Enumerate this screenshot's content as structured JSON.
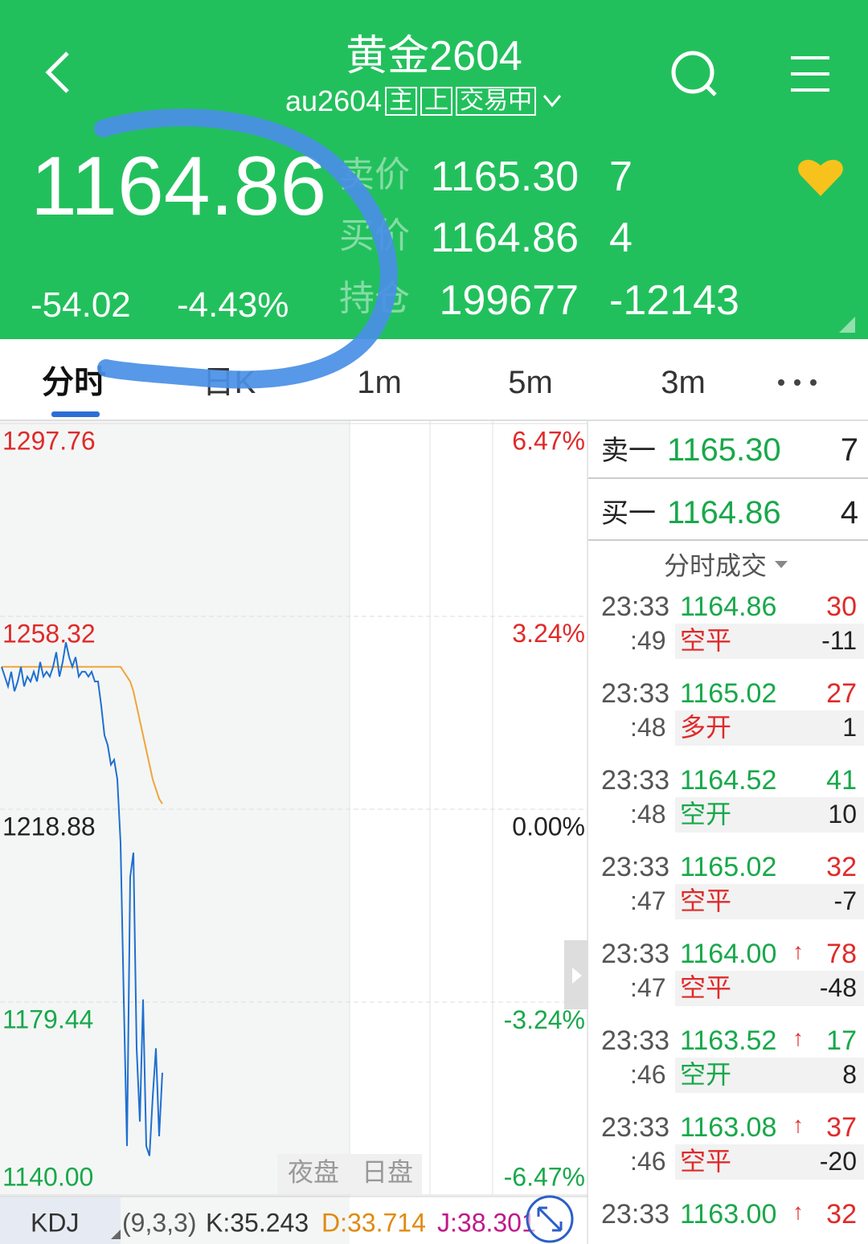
{
  "header": {
    "title": "黄金2604",
    "code": "au2604",
    "tags": [
      "主",
      "上",
      "交易中"
    ]
  },
  "quote": {
    "price": "1164.86",
    "change": "-54.02",
    "pct": "-4.43%",
    "rows": [
      {
        "label": "卖价",
        "price": "1165.30",
        "qty": "7"
      },
      {
        "label": "买价",
        "price": "1164.86",
        "qty": "4"
      },
      {
        "label": "持仓",
        "price": "199677",
        "qty": "-12143"
      }
    ]
  },
  "tabs": [
    "分时",
    "日K",
    "1m",
    "5m",
    "3m"
  ],
  "chart": {
    "type": "line",
    "yticks": [
      1297.76,
      1258.32,
      1218.88,
      1179.44,
      {
        "value": 1140,
        "label": "1140.00"
      }
    ],
    "y2ticks": [
      {
        "value": 6.47,
        "label": "6.47%"
      },
      {
        "value": 3.24,
        "label": "3.24%"
      },
      {
        "value": 0,
        "label": "0.00%"
      },
      {
        "value": -3.24,
        "label": "-3.24%"
      },
      {
        "value": -6.47,
        "label": "-6.47%"
      }
    ],
    "series": [
      {
        "name": "price",
        "color": "#1f6fd1",
        "values": [
          1248,
          1246,
          1244,
          1247,
          1243,
          1245,
          1248,
          1244,
          1246,
          1245,
          1247,
          1245,
          1249,
          1246,
          1247,
          1246,
          1248,
          1251,
          1246,
          1249,
          1253,
          1250,
          1248,
          1250,
          1246,
          1247,
          1247,
          1246,
          1247,
          1245,
          1245,
          1240,
          1234,
          1232,
          1228,
          1229,
          1225,
          1212,
          1180,
          1150,
          1205,
          1210,
          1170,
          1155,
          1180,
          1150,
          1148,
          1160,
          1170,
          1152,
          1165
        ]
      },
      {
        "name": "average",
        "color": "#f0a43a",
        "values": [
          1248,
          1248,
          1248,
          1248,
          1248,
          1248,
          1248,
          1248,
          1248,
          1248,
          1248,
          1248,
          1248,
          1248,
          1248,
          1248,
          1248,
          1248,
          1248,
          1248,
          1248,
          1248,
          1248,
          1248,
          1248,
          1248,
          1248,
          1248,
          1248,
          1248,
          1248,
          1248,
          1248,
          1248,
          1248,
          1248,
          1248,
          1248,
          1247,
          1246,
          1245,
          1243,
          1240,
          1237,
          1234,
          1231,
          1228,
          1225,
          1223,
          1221,
          1220
        ]
      }
    ],
    "sessions": [
      "夜盘",
      "日盘"
    ],
    "indicator": {
      "name": "KDJ",
      "params": "(9,3,3)",
      "k": "K:35.243",
      "d": "D:33.714",
      "j": "J:38.301"
    }
  },
  "book": [
    {
      "label": "卖一",
      "price": "1165.30",
      "qty": "7"
    },
    {
      "label": "买一",
      "price": "1164.86",
      "qty": "4"
    }
  ],
  "trades_title": "分时成交",
  "trades": [
    {
      "time": "23:33",
      "sec": ":49",
      "price": "1164.86",
      "vol": "30",
      "vol_color": "#e02a2a",
      "kind": "空平",
      "kind_color": "#e02a2a",
      "chg": "-11"
    },
    {
      "time": "23:33",
      "sec": ":48",
      "price": "1165.02",
      "vol": "27",
      "vol_color": "#e02a2a",
      "kind": "多开",
      "kind_color": "#e02a2a",
      "chg": "1"
    },
    {
      "time": "23:33",
      "sec": ":48",
      "price": "1164.52",
      "vol": "41",
      "vol_color": "#18a84a",
      "kind": "空开",
      "kind_color": "#18a84a",
      "chg": "10"
    },
    {
      "time": "23:33",
      "sec": ":47",
      "price": "1165.02",
      "vol": "32",
      "vol_color": "#e02a2a",
      "kind": "空平",
      "kind_color": "#e02a2a",
      "chg": "-7"
    },
    {
      "time": "23:33",
      "sec": ":47",
      "price": "1164.00",
      "arrow": "↑",
      "vol": "78",
      "vol_color": "#e02a2a",
      "kind": "空平",
      "kind_color": "#e02a2a",
      "chg": "-48"
    },
    {
      "time": "23:33",
      "sec": ":46",
      "price": "1163.52",
      "arrow": "↑",
      "vol": "17",
      "vol_color": "#18a84a",
      "kind": "空开",
      "kind_color": "#18a84a",
      "chg": "8"
    },
    {
      "time": "23:33",
      "sec": ":46",
      "price": "1163.08",
      "arrow": "↑",
      "vol": "37",
      "vol_color": "#e02a2a",
      "kind": "空平",
      "kind_color": "#e02a2a",
      "chg": "-20"
    },
    {
      "time": "23:33",
      "price": "1163.00",
      "arrow": "↑",
      "vol": "32",
      "vol_color": "#e02a2a"
    }
  ]
}
